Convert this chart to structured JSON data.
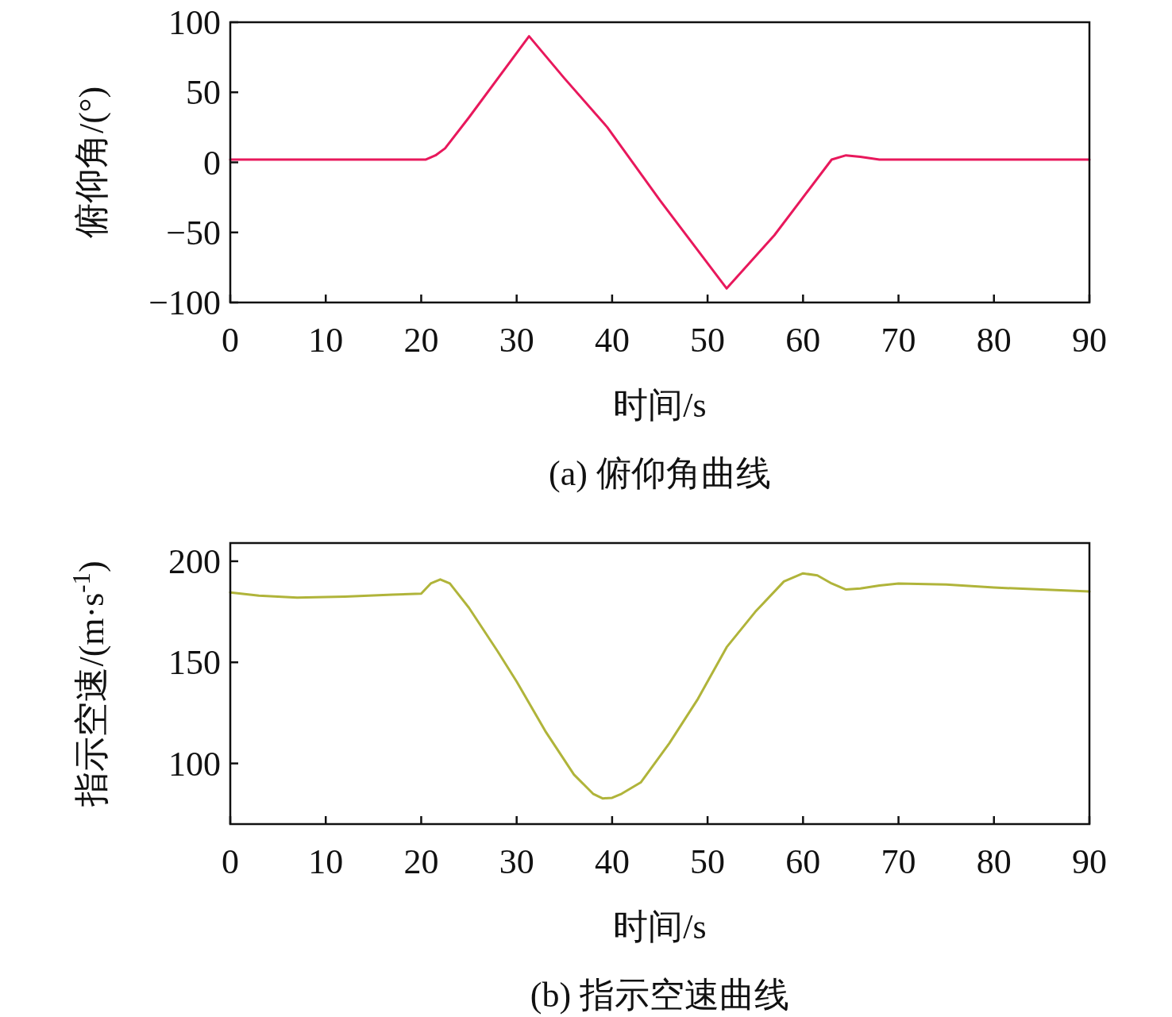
{
  "chart_data": [
    {
      "type": "line",
      "title": "(a) 俯仰角曲线",
      "xlabel": "时间/s",
      "ylabel": "俯仰角/(°)",
      "xlim": [
        0,
        90
      ],
      "xticks": [
        0,
        10,
        20,
        30,
        40,
        50,
        60,
        70,
        80,
        90
      ],
      "ylim": [
        -100,
        100
      ],
      "yticks": [
        -100,
        -50,
        0,
        50,
        100
      ],
      "series": [
        {
          "color": "#e8185c",
          "x": [
            0,
            10,
            20.5,
            21.5,
            22.5,
            25,
            31.3,
            35,
            39.5,
            45,
            52,
            57,
            63,
            64.5,
            66,
            68,
            75,
            90
          ],
          "values": [
            2,
            2,
            2,
            5,
            10,
            32,
            90,
            60,
            25,
            -27,
            -90,
            -52,
            2,
            5,
            4,
            2,
            2,
            2
          ]
        }
      ]
    },
    {
      "type": "line",
      "title": "(b) 指示空速曲线",
      "xlabel": "时间/s",
      "ylabel": "指示空速/(m·s$^{-1}$)",
      "xlim": [
        0,
        90
      ],
      "xticks": [
        0,
        10,
        20,
        30,
        40,
        50,
        60,
        70,
        80,
        90
      ],
      "ylim": [
        70,
        209
      ],
      "yticks": [
        100,
        150,
        200
      ],
      "series": [
        {
          "color": "#b0b43a",
          "x": [
            0,
            3,
            7,
            12,
            17,
            20,
            21,
            22,
            23,
            25,
            28,
            30,
            33,
            36,
            38,
            39,
            40,
            41,
            43,
            46,
            49,
            52,
            55,
            58,
            60,
            61.5,
            63,
            64.5,
            66,
            68,
            70,
            75,
            80,
            85,
            90
          ],
          "values": [
            184.6,
            183,
            182,
            182.5,
            183.5,
            184,
            189,
            191,
            189,
            177,
            155.5,
            140.5,
            116,
            94.5,
            85,
            82.7,
            83,
            85,
            90.6,
            110,
            132,
            157.5,
            175,
            190,
            194,
            193,
            189,
            186,
            186.5,
            188,
            189,
            188.5,
            187,
            186,
            185
          ]
        }
      ]
    }
  ]
}
